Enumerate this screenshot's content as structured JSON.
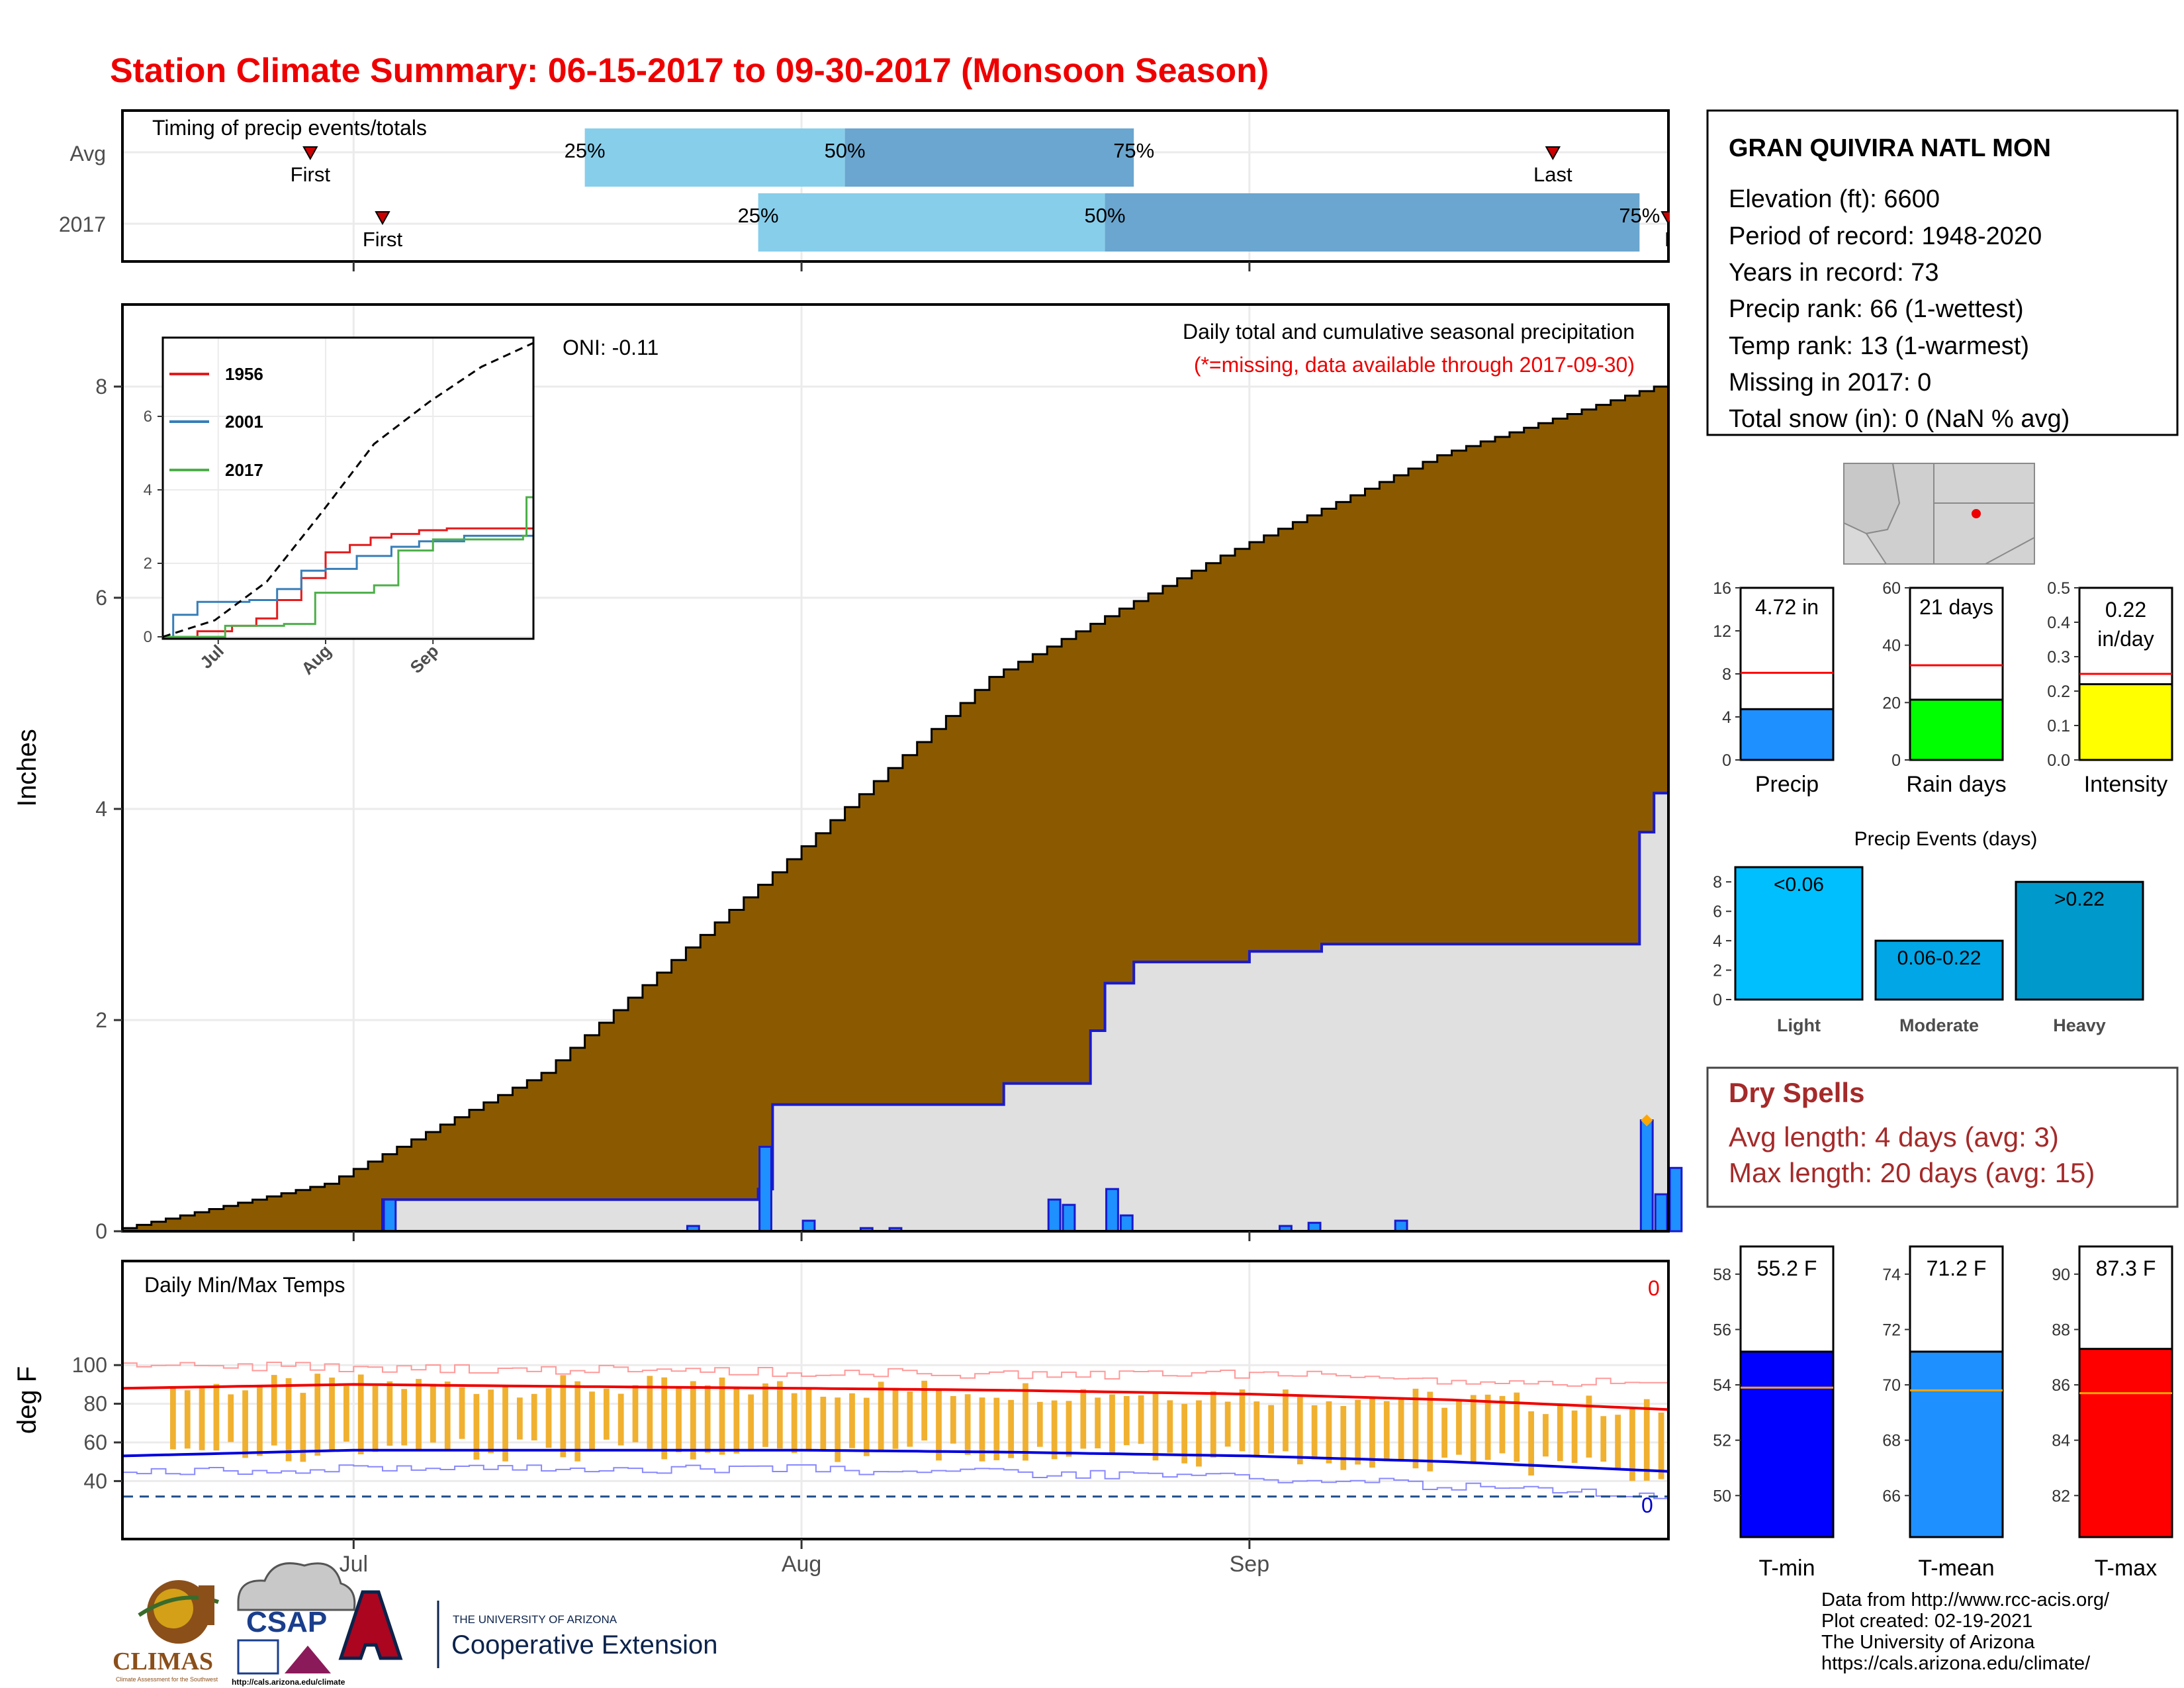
{
  "title": "Station Climate Summary: 06-15-2017 to 09-30-2017 (Monsoon Season)",
  "colors": {
    "title": "#ee0000",
    "cumulative_avg_fill": "#8b5a00",
    "cumulative_obs_fill": "#e0e0e0",
    "obs_line": "#1a1acc",
    "daily_bar": "#1e90ff",
    "quartile_light": "#87ceeb",
    "quartile_dark": "#6aa6cf",
    "temp_bar": "#f0b030",
    "tmax_line": "#ee0000",
    "tmin_line": "#0000dd",
    "dry_spells_text": "#a52a2a",
    "events_light": "#00bfff",
    "events_moderate": "#00a6e6",
    "events_heavy": "#0099cc",
    "precip_bar": "#1e90ff",
    "raindays_bar": "#00ff00",
    "intensity_bar": "#ffff00",
    "tmin_bar": "#0000ff",
    "tmean_bar": "#1e90ff",
    "tmax_bar": "#ff0000",
    "avg_line_red": "#ff0000",
    "avg_line_orange": "#ffa500"
  },
  "timing": {
    "label": "Timing of precip events/totals",
    "rows": [
      "Avg",
      "2017"
    ],
    "avg": {
      "first": "06-28",
      "q25": "07-17",
      "q50": "08-04",
      "q75": "08-24",
      "last": "09-22"
    },
    "obs": {
      "first": "07-03",
      "q25": "07-29",
      "q50": "08-22",
      "q75": "09-28",
      "last": "09-30"
    },
    "labels": {
      "q25": "25%",
      "q50": "50%",
      "q75": "75%",
      "first": "First",
      "last": "Last",
      "last_clipped": "La"
    }
  },
  "station": {
    "name": "GRAN QUIVIRA NATL MON",
    "lines": [
      "Elevation (ft): 6600",
      "Period of record: 1948-2020",
      "Years in record: 73",
      "Precip rank: 66 (1-wettest)",
      "Temp rank: 13 (1-warmest)",
      "Missing in 2017: 0",
      "Total snow (in): 0 (NaN % avg)"
    ]
  },
  "precip_panel": {
    "ylabel": "Inches",
    "header": "Daily total and cumulative seasonal precipitation",
    "subheader": "(*=missing, data available through 2017-09-30)",
    "oni": "ONI: -0.11",
    "x_ticks": [
      "Jul",
      "Aug",
      "Sep"
    ],
    "y_ticks": [
      "0",
      "2",
      "4",
      "6",
      "8"
    ]
  },
  "inset": {
    "legend": [
      "1956",
      "2001",
      "2017"
    ],
    "x_ticks": [
      "Jul",
      "Aug",
      "Sep"
    ],
    "y_ticks": [
      "0",
      "2",
      "4",
      "6"
    ]
  },
  "temp_panel": {
    "ylabel": "deg F",
    "header": "Daily Min/Max Temps",
    "top_count": "0",
    "bottom_count": "0",
    "x_ticks": [
      "Jul",
      "Aug",
      "Sep"
    ],
    "y_ticks": [
      "40",
      "60",
      "80",
      "100"
    ]
  },
  "mini_precip": [
    {
      "value_label": "4.72 in",
      "xlabel": "Precip",
      "ticks": [
        "0",
        "4",
        "8",
        "12",
        "16"
      ]
    },
    {
      "value_label": "21 days",
      "xlabel": "Rain days",
      "ticks": [
        "0",
        "20",
        "40",
        "60"
      ]
    },
    {
      "value_label_1": "0.22",
      "value_label_2": "in/day",
      "xlabel": "Intensity",
      "ticks": [
        "0.0",
        "0.1",
        "0.2",
        "0.3",
        "0.4",
        "0.5"
      ]
    }
  ],
  "events": {
    "title": "Precip Events (days)",
    "bars": [
      {
        "label": "<0.06",
        "xlabel": "Light"
      },
      {
        "label": "0.06-0.22",
        "xlabel": "Moderate"
      },
      {
        "label": ">0.22",
        "xlabel": "Heavy"
      }
    ],
    "ticks": [
      "0",
      "2",
      "4",
      "6",
      "8"
    ]
  },
  "dry_spells": {
    "title": "Dry Spells",
    "line1": "Avg length: 4 days (avg: 3)",
    "line2": "Max length: 20 days (avg: 15)"
  },
  "mini_temp": [
    {
      "value_label": "55.2 F",
      "xlabel": "T-min",
      "ticks": [
        "50",
        "52",
        "54",
        "56",
        "58"
      ]
    },
    {
      "value_label": "71.2 F",
      "xlabel": "T-mean",
      "ticks": [
        "66",
        "68",
        "70",
        "72",
        "74"
      ]
    },
    {
      "value_label": "87.3 F",
      "xlabel": "T-max",
      "ticks": [
        "82",
        "84",
        "86",
        "88",
        "90"
      ]
    }
  ],
  "credits": [
    "Data from http://www.rcc-acis.org/",
    "Plot created: 02-19-2021",
    "The University of Arizona",
    "https://cals.arizona.edu/climate/"
  ],
  "logos": {
    "climas": "CLIMAS",
    "climas_sub": "Climate Assessment for the Southwest",
    "csap": "CSAP",
    "csap_url": "http://cals.arizona.edu/climate",
    "ua_small": "THE UNIVERSITY OF ARIZONA",
    "ua_big": "Cooperative Extension"
  },
  "chart_data": [
    {
      "type": "area",
      "title": "Daily total and cumulative seasonal precipitation",
      "ylabel": "Inches",
      "x_range": [
        "06-15",
        "09-30"
      ],
      "ylim": [
        0,
        8.8
      ],
      "series": [
        {
          "name": "Average cumulative",
          "x": [
            "06-15",
            "06-30",
            "07-15",
            "07-31",
            "08-15",
            "08-31",
            "09-15",
            "09-30"
          ],
          "values": [
            0.0,
            0.45,
            1.5,
            3.4,
            5.25,
            6.4,
            7.35,
            8.0
          ]
        },
        {
          "name": "2017 cumulative",
          "x": [
            "06-15",
            "07-03",
            "07-29",
            "07-30",
            "08-15",
            "08-21",
            "08-22",
            "08-24",
            "09-01",
            "09-06",
            "09-28",
            "09-29",
            "09-30"
          ],
          "values": [
            0.0,
            0.3,
            0.4,
            1.2,
            1.4,
            1.9,
            2.35,
            2.55,
            2.65,
            2.72,
            3.78,
            4.15,
            4.72
          ]
        },
        {
          "name": "2017 daily",
          "x": [
            "07-03",
            "07-24",
            "07-29",
            "08-01",
            "08-05",
            "08-07",
            "08-18",
            "08-19",
            "08-22",
            "08-23",
            "09-03",
            "09-05",
            "09-11",
            "09-28",
            "09-29",
            "09-30"
          ],
          "values": [
            0.3,
            0.05,
            0.8,
            0.1,
            0.03,
            0.03,
            0.3,
            0.25,
            0.4,
            0.15,
            0.05,
            0.08,
            0.1,
            1.05,
            0.35,
            0.6
          ]
        }
      ]
    },
    {
      "type": "line",
      "title": "",
      "x_range": [
        "06-15",
        "09-30"
      ],
      "ylim": [
        0,
        8.5
      ],
      "series": [
        {
          "name": "1956",
          "x": [
            "06-15",
            "06-25",
            "07-05",
            "07-12",
            "07-18",
            "07-25",
            "08-01",
            "08-08",
            "08-14",
            "08-20",
            "08-28",
            "09-05",
            "09-30"
          ],
          "values": [
            0.0,
            0.15,
            0.3,
            0.5,
            1.0,
            1.6,
            2.3,
            2.5,
            2.7,
            2.8,
            2.9,
            2.95,
            2.95
          ]
        },
        {
          "name": "2001",
          "x": [
            "06-15",
            "06-18",
            "06-25",
            "07-10",
            "07-18",
            "07-25",
            "08-01",
            "08-10",
            "08-20",
            "08-28",
            "09-10",
            "09-30"
          ],
          "values": [
            0.0,
            0.6,
            0.95,
            1.0,
            1.3,
            1.8,
            1.85,
            2.2,
            2.45,
            2.6,
            2.75,
            2.85
          ]
        },
        {
          "name": "2017",
          "x": [
            "06-15",
            "07-03",
            "07-20",
            "07-29",
            "08-15",
            "08-22",
            "09-01",
            "09-27",
            "09-28",
            "09-30"
          ],
          "values": [
            0.0,
            0.3,
            0.35,
            1.2,
            1.4,
            2.35,
            2.65,
            2.75,
            3.8,
            4.72
          ]
        },
        {
          "name": "Average",
          "x": [
            "06-15",
            "06-30",
            "07-15",
            "07-31",
            "08-15",
            "08-31",
            "09-15",
            "09-30"
          ],
          "values": [
            0.0,
            0.45,
            1.5,
            3.4,
            5.25,
            6.4,
            7.35,
            8.0
          ]
        }
      ]
    },
    {
      "type": "line",
      "title": "Daily Min/Max Temps",
      "ylabel": "deg F",
      "x_range": [
        "06-15",
        "09-30"
      ],
      "ylim": [
        27,
        104
      ],
      "series": [
        {
          "name": "Avg max",
          "x": [
            "06-15",
            "07-01",
            "07-15",
            "08-01",
            "08-15",
            "09-01",
            "09-15",
            "09-30"
          ],
          "values": [
            88,
            90,
            89,
            88,
            87,
            85,
            82,
            77
          ]
        },
        {
          "name": "Avg min",
          "x": [
            "06-15",
            "07-01",
            "07-15",
            "08-01",
            "08-15",
            "09-01",
            "09-15",
            "09-30"
          ],
          "values": [
            53,
            56,
            56,
            56,
            55,
            53,
            50,
            45
          ]
        },
        {
          "name": "Record max",
          "x": [
            "06-15",
            "07-01",
            "08-01",
            "09-01",
            "09-30"
          ],
          "values": [
            100,
            99,
            96,
            95,
            90
          ]
        },
        {
          "name": "Record min",
          "x": [
            "06-15",
            "07-01",
            "08-01",
            "09-01",
            "09-30"
          ],
          "values": [
            45,
            47,
            46,
            42,
            32
          ]
        },
        {
          "name": "Freezing",
          "x": [
            "06-15",
            "09-30"
          ],
          "values": [
            32,
            32
          ]
        }
      ]
    },
    {
      "type": "bar",
      "categories": [
        "Precip"
      ],
      "values": [
        4.72
      ],
      "average": 8.1,
      "ylim": [
        0,
        16
      ]
    },
    {
      "type": "bar",
      "categories": [
        "Rain days"
      ],
      "values": [
        21
      ],
      "average": 33,
      "ylim": [
        0,
        60
      ]
    },
    {
      "type": "bar",
      "categories": [
        "Intensity"
      ],
      "values": [
        0.22
      ],
      "average": 0.25,
      "ylim": [
        0,
        0.5
      ]
    },
    {
      "type": "bar",
      "title": "Precip Events (days)",
      "categories": [
        "Light",
        "Moderate",
        "Heavy"
      ],
      "values": [
        9,
        4,
        8
      ],
      "ylim": [
        0,
        9
      ]
    },
    {
      "type": "bar",
      "categories": [
        "T-min"
      ],
      "values": [
        55.2
      ],
      "average": 53.9,
      "ylim": [
        48.5,
        59
      ]
    },
    {
      "type": "bar",
      "categories": [
        "T-mean"
      ],
      "values": [
        71.2
      ],
      "average": 69.8,
      "ylim": [
        64.5,
        75
      ]
    },
    {
      "type": "bar",
      "categories": [
        "T-max"
      ],
      "values": [
        87.3
      ],
      "average": 85.7,
      "ylim": [
        80.5,
        91
      ]
    }
  ]
}
